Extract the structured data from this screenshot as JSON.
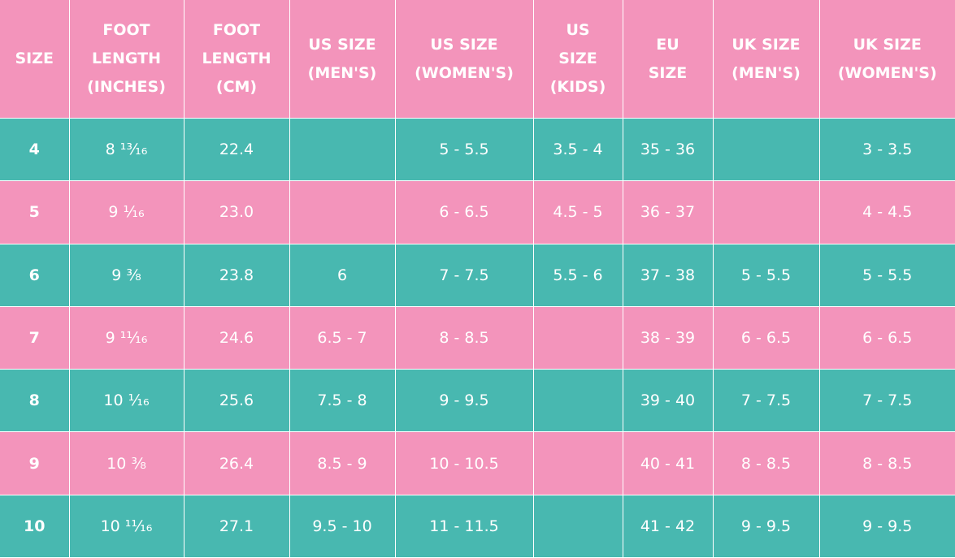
{
  "table": {
    "header": [
      [
        "SIZE"
      ],
      [
        "FOOT",
        "LENGTH",
        "(INCHES)"
      ],
      [
        "FOOT",
        "LENGTH",
        "(CM)"
      ],
      [
        "US SIZE",
        "(MEN'S)"
      ],
      [
        "US SIZE",
        "(WOMEN'S)"
      ],
      [
        "US",
        "SIZE",
        "(KIDS)"
      ],
      [
        "EU",
        "SIZE"
      ],
      [
        "UK SIZE",
        "(MEN'S)"
      ],
      [
        "UK SIZE",
        "(WOMEN'S)"
      ]
    ],
    "rows": [
      [
        "4",
        "8 ¹³⁄₁₆",
        "22.4",
        null,
        "5 - 5.5",
        "3.5 - 4",
        "35 - 36",
        null,
        "3 - 3.5"
      ],
      [
        "5",
        "9 ¹⁄₁₆",
        "23.0",
        null,
        "6 - 6.5",
        "4.5 - 5",
        "36 - 37",
        null,
        "4 - 4.5"
      ],
      [
        "6",
        "9 ³⁄₈",
        "23.8",
        "6",
        "7 - 7.5",
        "5.5 - 6",
        "37 - 38",
        "5 - 5.5",
        "5 - 5.5"
      ],
      [
        "7",
        "9 ¹¹⁄₁₆",
        "24.6",
        "6.5 - 7",
        "8 - 8.5",
        null,
        "38 - 39",
        "6 - 6.5",
        "6 - 6.5"
      ],
      [
        "8",
        "10 ¹⁄₁₆",
        "25.6",
        "7.5 - 8",
        "9 - 9.5",
        null,
        "39 - 40",
        "7 - 7.5",
        "7 - 7.5"
      ],
      [
        "9",
        "10 ³⁄₈",
        "26.4",
        "8.5 - 9",
        "10 - 10.5",
        null,
        "40 - 41",
        "8 - 8.5",
        "8 - 8.5"
      ],
      [
        "10",
        "10 ¹¹⁄₁₆",
        "27.1",
        "9.5 - 10",
        "11 - 11.5",
        null,
        "41 - 42",
        "9 - 9.5",
        "9 - 9.5"
      ]
    ]
  }
}
